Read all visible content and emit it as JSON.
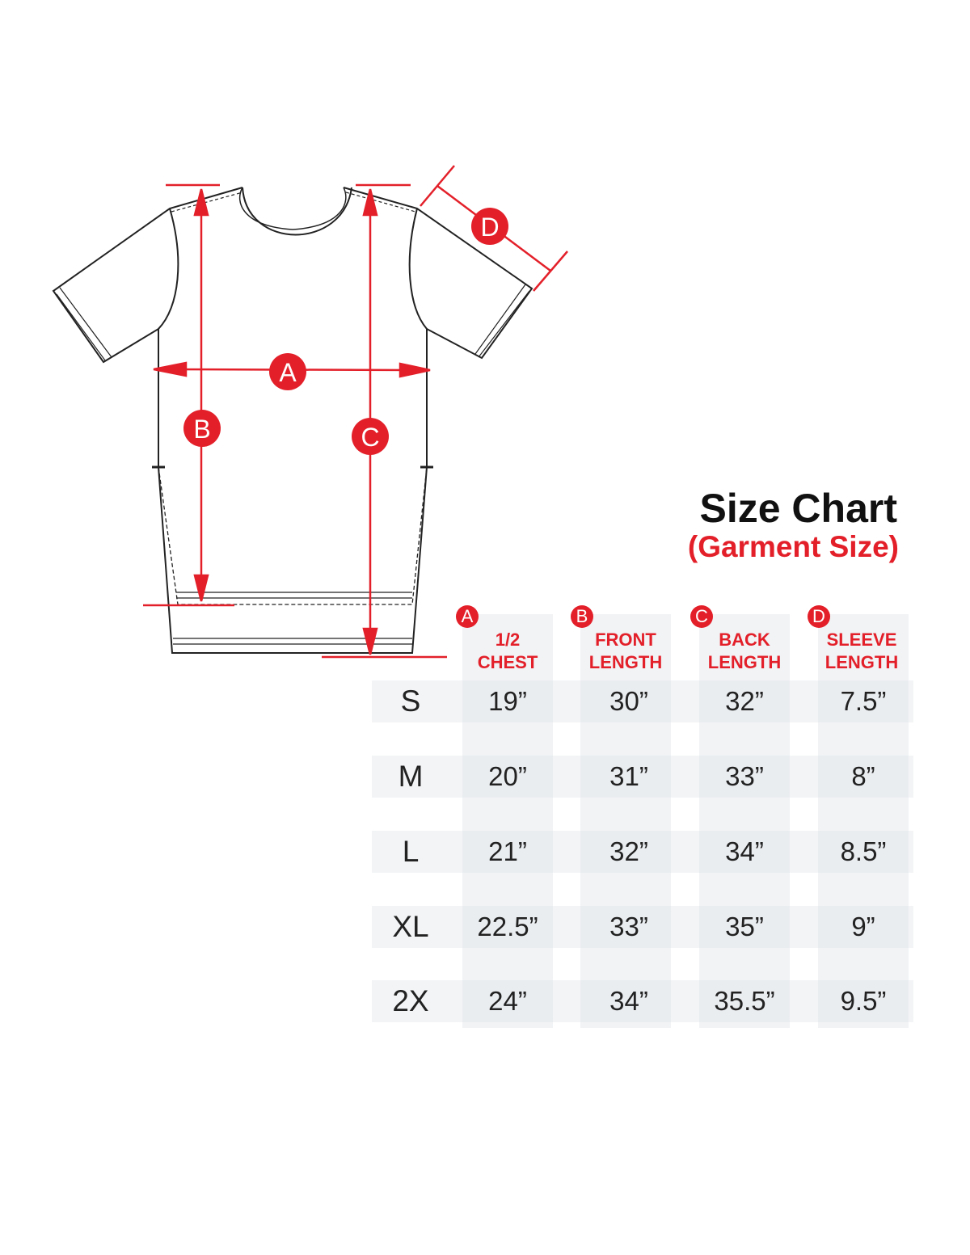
{
  "title": "Size Chart",
  "subtitle": "(Garment Size)",
  "accent_color": "#e3202a",
  "diagram_labels": [
    "A",
    "B",
    "C",
    "D"
  ],
  "columns": [
    {
      "badge": "A",
      "line1": "1/2",
      "line2": "CHEST"
    },
    {
      "badge": "B",
      "line1": "FRONT",
      "line2": "LENGTH"
    },
    {
      "badge": "C",
      "line1": "BACK",
      "line2": "LENGTH"
    },
    {
      "badge": "D",
      "line1": "SLEEVE",
      "line2": "LENGTH"
    }
  ],
  "rows": [
    {
      "size": "S",
      "values": [
        "19”",
        "30”",
        "32”",
        "7.5”"
      ]
    },
    {
      "size": "M",
      "values": [
        "20”",
        "31”",
        "33”",
        "8”"
      ]
    },
    {
      "size": "L",
      "values": [
        "21”",
        "32”",
        "34”",
        "8.5”"
      ]
    },
    {
      "size": "XL",
      "values": [
        "22.5”",
        "33”",
        "35”",
        "9”"
      ]
    },
    {
      "size": "2X",
      "values": [
        "24”",
        "34”",
        "35.5”",
        "9.5”"
      ]
    }
  ]
}
